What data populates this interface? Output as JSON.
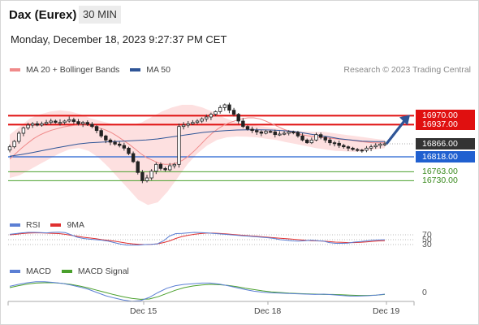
{
  "header": {
    "instrument": "Dax (Eurex)",
    "timeframe": "30 MIN",
    "timestamp": "Monday, December 18, 2023 9:27:37 PM CET"
  },
  "legend_main": [
    {
      "label": "MA 20 + Bollinger Bands",
      "color": "#f08a8a"
    },
    {
      "label": "MA 50",
      "color": "#2f5597"
    }
  ],
  "credit": "Research © 2023 Trading Central",
  "legend_rsi": [
    {
      "label": "RSI",
      "color": "#5b7fd4"
    },
    {
      "label": "9MA",
      "color": "#e03030"
    }
  ],
  "legend_macd": [
    {
      "label": "MACD",
      "color": "#5b7fd4"
    },
    {
      "label": "MACD Signal",
      "color": "#4aa02c"
    }
  ],
  "colors": {
    "resistance": "#e01010",
    "support": "#2060d0",
    "pivot_box": "#333333",
    "level_line": "#4aa02c",
    "arrow": "#2f5597"
  },
  "chart_data": [
    {
      "type": "candlestick",
      "title": "Dax (Eurex)",
      "x_ticks": [
        "Dec 15",
        "Dec 18",
        "Dec 19"
      ],
      "ylim": [
        16650,
        17020
      ],
      "close_series": [
        16855,
        16875,
        16905,
        16925,
        16935,
        16940,
        16935,
        16940,
        16945,
        16950,
        16945,
        16945,
        16950,
        16955,
        16948,
        16940,
        16945,
        16938,
        16930,
        16915,
        16895,
        16880,
        16872,
        16865,
        16860,
        16850,
        16830,
        16800,
        16760,
        16730,
        16740,
        16765,
        16790,
        16775,
        16770,
        16785,
        16790,
        16930,
        16935,
        16940,
        16945,
        16950,
        16958,
        16965,
        16975,
        16985,
        17000,
        17010,
        16990,
        16975,
        16950,
        16930,
        16920,
        16915,
        16910,
        16905,
        16912,
        16910,
        16900,
        16902,
        16905,
        16910,
        16908,
        16895,
        16880,
        16870,
        16880,
        16900,
        16890,
        16880,
        16870,
        16868,
        16860,
        16855,
        16850,
        16845,
        16843,
        16842,
        16850,
        16855,
        16860,
        16865,
        16866
      ],
      "ma20_series": [
        16810,
        16830,
        16850,
        16868,
        16885,
        16898,
        16908,
        16916,
        16922,
        16928,
        16932,
        16934,
        16935,
        16934,
        16930,
        16925,
        16918,
        16908,
        16895,
        16880,
        16865,
        16848,
        16830,
        16815,
        16805,
        16795,
        16790,
        16790,
        16795,
        16805,
        16820,
        16840,
        16862,
        16885,
        16905,
        16922,
        16935,
        16945,
        16952,
        16958,
        16962,
        16962,
        16958,
        16950,
        16940,
        16930,
        16920,
        16912,
        16906,
        16900,
        16896,
        16893,
        16890,
        16888,
        16886,
        16884,
        16882,
        16880,
        16877,
        16874,
        16872,
        16870,
        16870,
        16870
      ],
      "bollinger_upper": [
        16900,
        16930,
        16960,
        16975,
        16985,
        16990,
        16985,
        16975,
        16960,
        16950,
        16940,
        16935,
        16935,
        16945,
        16965,
        16985,
        17000,
        17010,
        17010,
        17000,
        16985,
        16965,
        16950,
        16940,
        16935,
        16930,
        16925,
        16920,
        16915,
        16912,
        16910,
        16910,
        16905,
        16900,
        16895,
        16890,
        16885,
        16880
      ],
      "bollinger_lower": [
        16740,
        16750,
        16770,
        16790,
        16810,
        16830,
        16845,
        16850,
        16840,
        16815,
        16780,
        16740,
        16700,
        16660,
        16640,
        16650,
        16690,
        16740,
        16790,
        16830,
        16860,
        16880,
        16890,
        16893,
        16892,
        16890,
        16885,
        16880,
        16872,
        16865,
        16858,
        16850,
        16845,
        16840,
        16838,
        16836,
        16840,
        16845,
        16850
      ],
      "ma50_series": [
        16820,
        16826,
        16834,
        16842,
        16850,
        16858,
        16865,
        16870,
        16872,
        16874,
        16876,
        16878,
        16880,
        16884,
        16890,
        16896,
        16902,
        16908,
        16912,
        16915,
        16917,
        16918,
        16918,
        16917,
        16915,
        16912,
        16905,
        16898,
        16892,
        16885,
        16880,
        16876,
        16874,
        16874
      ],
      "resistance_levels": [
        16970.0,
        16937.0
      ],
      "current_price": 16866.0,
      "support_level": 16818.0,
      "target_levels": [
        16763.0,
        16730.0
      ]
    },
    {
      "type": "line",
      "name": "RSI panel",
      "ticks": [
        70,
        50,
        30
      ],
      "series": [
        {
          "name": "RSI",
          "values": [
            72,
            75,
            78,
            80,
            80,
            79,
            78,
            80,
            81,
            79,
            70,
            60,
            55,
            52,
            50,
            48,
            44,
            38,
            32,
            28,
            28,
            28,
            30,
            31,
            33,
            45,
            65,
            75,
            76,
            78,
            80,
            79,
            78,
            76,
            74,
            72,
            70,
            68,
            66,
            64,
            62,
            60,
            58,
            55,
            50,
            48,
            45,
            44,
            46,
            48,
            46,
            44,
            38,
            35,
            35,
            36,
            40,
            42,
            45,
            48,
            49,
            50
          ]
        },
        {
          "name": "9MA",
          "values": [
            70,
            72,
            75,
            77,
            78,
            78,
            77,
            76,
            75,
            72,
            68,
            64,
            60,
            57,
            54,
            50,
            47,
            44,
            40,
            36,
            33,
            31,
            30,
            31,
            33,
            38,
            45,
            55,
            63,
            68,
            72,
            75,
            77,
            77,
            76,
            74,
            72,
            70,
            68,
            66,
            64,
            62,
            60,
            58,
            56,
            54,
            52,
            50,
            48,
            46,
            45,
            44,
            42,
            40,
            39,
            38,
            38,
            39,
            41,
            43,
            45,
            46
          ]
        }
      ]
    },
    {
      "type": "line",
      "name": "MACD panel",
      "ticks": [
        0
      ],
      "series": [
        {
          "name": "MACD",
          "values": [
            24,
            30,
            35,
            38,
            38,
            36,
            33,
            28,
            22,
            15,
            5,
            -5,
            -12,
            -18,
            -22,
            -20,
            -10,
            5,
            18,
            26,
            30,
            32,
            34,
            34,
            31,
            26,
            20,
            14,
            9,
            6,
            4,
            3,
            2,
            1,
            0,
            -1,
            0,
            -2,
            -4,
            -6,
            -6,
            -5,
            -3,
            0
          ]
        },
        {
          "name": "MACD Signal",
          "values": [
            20,
            26,
            31,
            34,
            35,
            35,
            33,
            30,
            25,
            19,
            12,
            5,
            -2,
            -8,
            -13,
            -16,
            -15,
            -8,
            2,
            12,
            20,
            25,
            28,
            30,
            29,
            27,
            23,
            18,
            14,
            10,
            7,
            5,
            3,
            2,
            1,
            0,
            -1,
            -1,
            -2,
            -3,
            -4,
            -4,
            -3,
            -1
          ]
        }
      ]
    }
  ]
}
